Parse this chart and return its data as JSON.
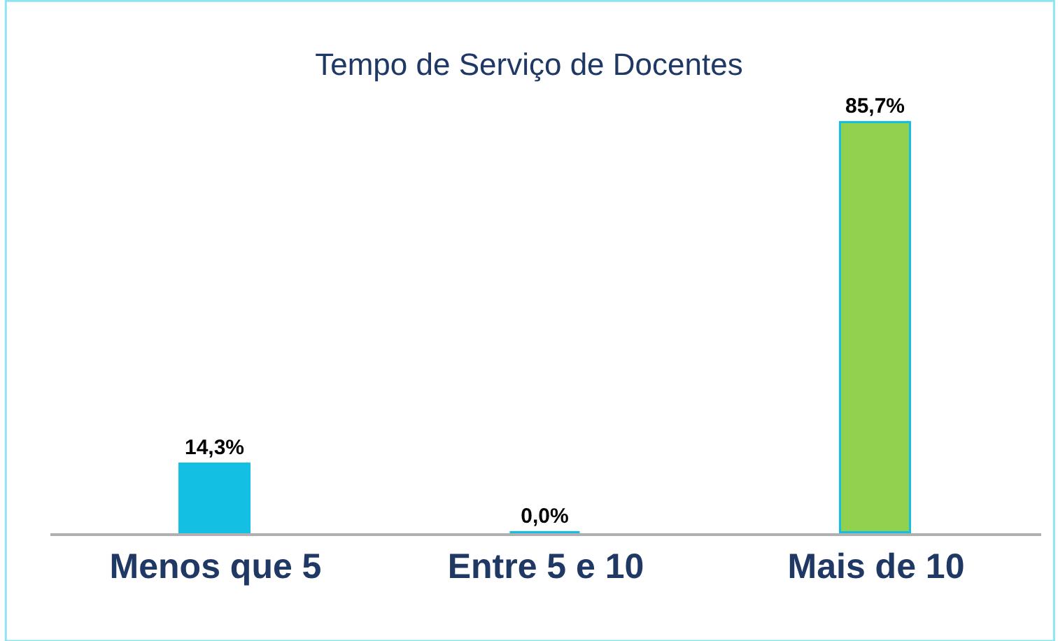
{
  "chart_data": {
    "type": "bar",
    "title": "Tempo de Serviço de Docentes",
    "categories": [
      "Menos que 5",
      "Entre 5 e 10",
      "Mais de 10"
    ],
    "values": [
      14.3,
      0.0,
      85.7
    ],
    "colors": [
      "#13c0e3",
      "#13c0e3",
      "#92d050"
    ],
    "value_labels": [
      "14,3%",
      "0,0%",
      "85,7%"
    ],
    "legend": false
  }
}
